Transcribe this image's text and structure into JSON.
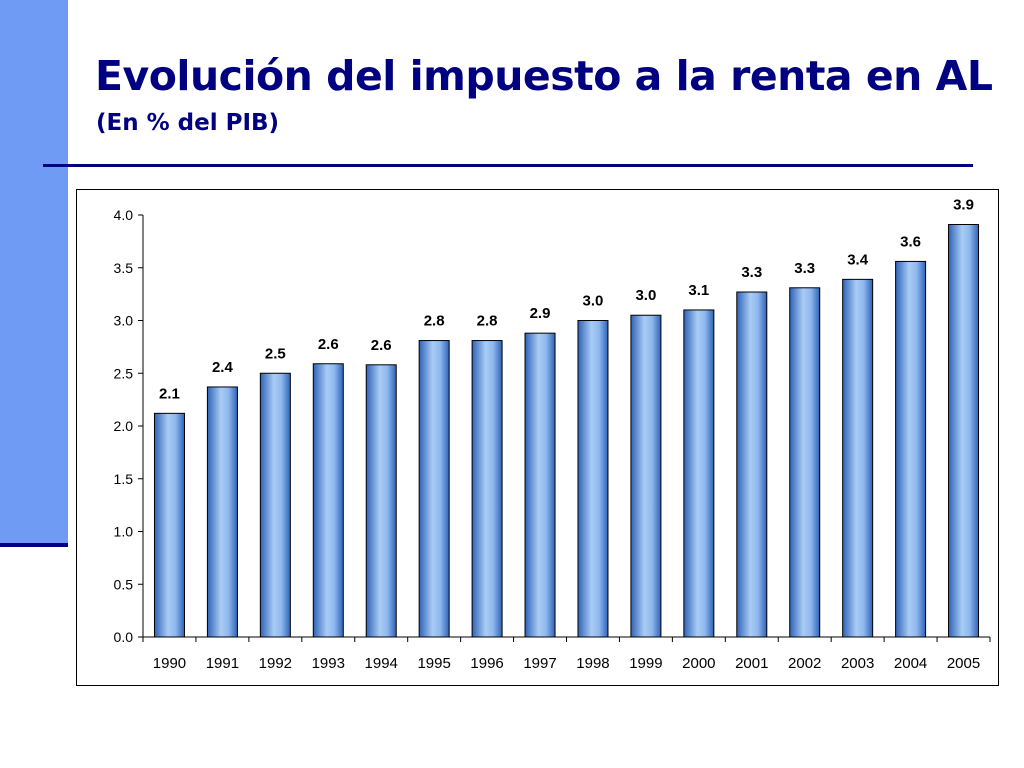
{
  "slide": {
    "title": "Evolución del impuesto a la renta en AL",
    "subtitle": "(En % del PIB)"
  },
  "colors": {
    "accent": "#000080",
    "side_band": "#6f9bf4",
    "bar_light": "#a9ccf5",
    "bar_mid": "#6f9ee3",
    "bar_dark": "#2f63b8"
  },
  "chart_data": {
    "type": "bar",
    "categories": [
      "1990",
      "1991",
      "1992",
      "1993",
      "1994",
      "1995",
      "1996",
      "1997",
      "1998",
      "1999",
      "2000",
      "2001",
      "2002",
      "2003",
      "2004",
      "2005"
    ],
    "values": [
      2.12,
      2.37,
      2.5,
      2.59,
      2.58,
      2.81,
      2.81,
      2.88,
      3.0,
      3.05,
      3.1,
      3.27,
      3.31,
      3.39,
      3.56,
      3.91
    ],
    "data_labels": [
      "2.1",
      "2.4",
      "2.5",
      "2.6",
      "2.6",
      "2.8",
      "2.8",
      "2.9",
      "3.0",
      "3.0",
      "3.1",
      "3.3",
      "3.3",
      "3.4",
      "3.6",
      "3.9"
    ],
    "yticks": [
      "0.0",
      "0.5",
      "1.0",
      "1.5",
      "2.0",
      "2.5",
      "3.0",
      "3.5",
      "4.0"
    ],
    "ylim": [
      0,
      4.0
    ],
    "xlabel": "",
    "ylabel": "",
    "grid": false,
    "legend": "none"
  }
}
